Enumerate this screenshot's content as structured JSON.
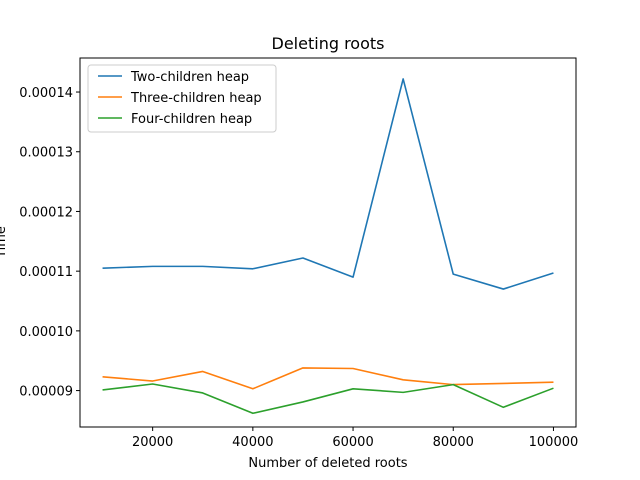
{
  "chart_data": {
    "type": "line",
    "title": "Deleting roots",
    "xlabel": "Number of deleted roots",
    "ylabel": "Time",
    "x": [
      10000,
      20000,
      30000,
      40000,
      50000,
      60000,
      70000,
      80000,
      90000,
      100000
    ],
    "x_ticks": [
      "20000",
      "40000",
      "60000",
      "80000",
      "100000"
    ],
    "y_ticks": [
      "0.00009",
      "0.00010",
      "0.00011",
      "0.00012",
      "0.00013",
      "0.00014"
    ],
    "xlim": [
      5500,
      104500
    ],
    "ylim": [
      8.39e-05,
      0.0001457
    ],
    "grid": false,
    "legend_position": "top-left",
    "series": [
      {
        "name": "Two-children heap",
        "color": "#1f77b4",
        "values": [
          0.0001105,
          0.0001108,
          0.0001108,
          0.0001104,
          0.0001122,
          0.000109,
          0.0001422,
          0.0001095,
          0.000107,
          0.0001097
        ]
      },
      {
        "name": "Three-children heap",
        "color": "#ff7f0e",
        "values": [
          9.23e-05,
          9.16e-05,
          9.32e-05,
          9.03e-05,
          9.38e-05,
          9.37e-05,
          9.18e-05,
          9.1e-05,
          9.12e-05,
          9.14e-05
        ]
      },
      {
        "name": "Four-children heap",
        "color": "#2ca02c",
        "values": [
          9.01e-05,
          9.11e-05,
          8.96e-05,
          8.62e-05,
          8.81e-05,
          9.03e-05,
          8.97e-05,
          9.1e-05,
          8.72e-05,
          9.04e-05
        ]
      }
    ]
  }
}
